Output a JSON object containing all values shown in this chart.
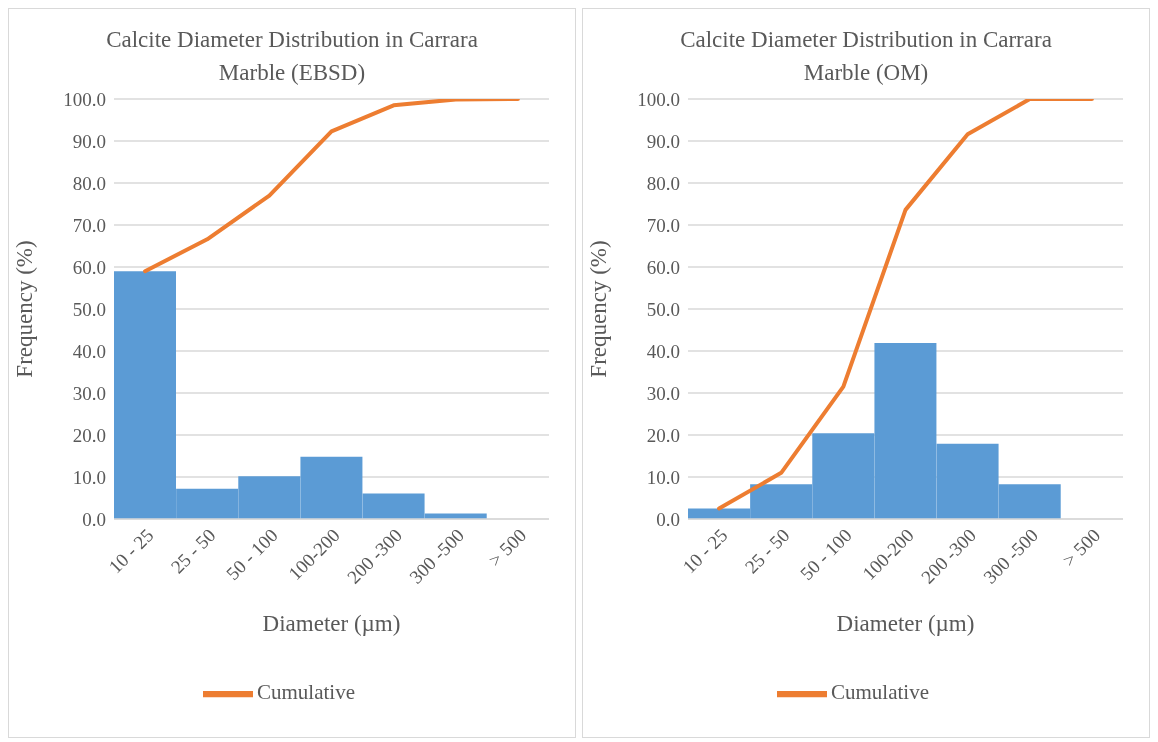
{
  "chart_data": [
    {
      "type": "bar",
      "title": "Calcite Diameter Distribution in Carrara Marble (EBSD)",
      "xlabel": "Diameter (µm)",
      "ylabel": "Frequency (%)",
      "categories": [
        "10 - 25",
        "25 - 50",
        "50 - 100",
        "100-200",
        "200 -300",
        "300 -500",
        "> 500"
      ],
      "series": [
        {
          "color": "#5b9bd5",
          "values": [
            59.0,
            7.2,
            10.2,
            14.8,
            6.1,
            1.3,
            0
          ]
        },
        {
          "type": "line",
          "name": "Cumulative",
          "color": "#ed7d31",
          "values": [
            59.0,
            66.6,
            77.0,
            92.3,
            98.5,
            99.9,
            100.0
          ]
        }
      ],
      "ylim": [
        0,
        100
      ],
      "yticks": [
        {
          "value": 0,
          "label": "0.0"
        },
        {
          "value": 10,
          "label": "10.0"
        },
        {
          "value": 20,
          "label": "20.0"
        },
        {
          "value": 30,
          "label": "30.0"
        },
        {
          "value": 40,
          "label": "40.0"
        },
        {
          "value": 50,
          "label": "50.0"
        },
        {
          "value": 60,
          "label": "60.0"
        },
        {
          "value": 70,
          "label": "70.0"
        },
        {
          "value": 80,
          "label": "80.0"
        },
        {
          "value": 90,
          "label": "90.0"
        },
        {
          "value": 100,
          "label": "100.0"
        }
      ],
      "grid": "y",
      "legend": "bottom",
      "marker": "none",
      "line_style": "solid"
    },
    {
      "type": "bar",
      "title": "Calcite Diameter Distribution in Carrara Marble (OM)",
      "xlabel": "Diameter (µm)",
      "ylabel": "Frequency (%)",
      "categories": [
        "10 - 25",
        "25 - 50",
        "50 - 100",
        "100-200",
        "200 -300",
        "300 -500",
        "> 500"
      ],
      "series": [
        {
          "color": "#5b9bd5",
          "values": [
            2.5,
            8.3,
            20.4,
            41.9,
            17.9,
            8.3,
            0
          ]
        },
        {
          "type": "line",
          "name": "Cumulative",
          "color": "#ed7d31",
          "values": [
            2.5,
            11.0,
            31.5,
            73.6,
            91.6,
            100.0,
            100.0
          ]
        }
      ],
      "ylim": [
        0,
        100
      ],
      "yticks": [
        {
          "value": 0,
          "label": "0.0"
        },
        {
          "value": 10,
          "label": "10.0"
        },
        {
          "value": 20,
          "label": "20.0"
        },
        {
          "value": 30,
          "label": "30.0"
        },
        {
          "value": 40,
          "label": "40.0"
        },
        {
          "value": 50,
          "label": "50.0"
        },
        {
          "value": 60,
          "label": "60.0"
        },
        {
          "value": 70,
          "label": "70.0"
        },
        {
          "value": 80,
          "label": "80.0"
        },
        {
          "value": 90,
          "label": "90.0"
        },
        {
          "value": 100,
          "label": "100.0"
        }
      ],
      "grid": "y",
      "legend": "bottom",
      "marker": "none",
      "line_style": "solid"
    }
  ]
}
